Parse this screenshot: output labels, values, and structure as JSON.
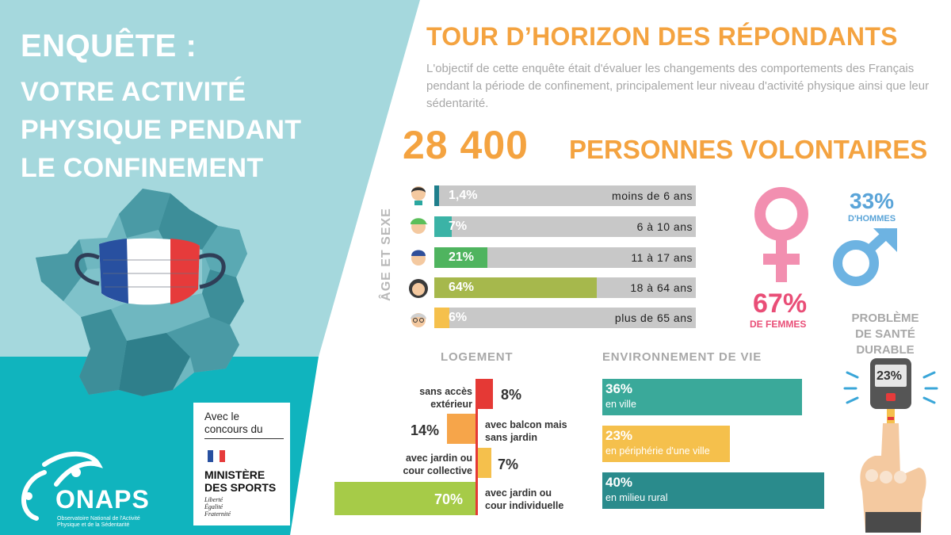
{
  "left": {
    "title": "ENQUÊTE :",
    "subtitle_lines": [
      "VOTRE ACTIVITÉ",
      "PHYSIQUE PENDANT",
      "LE CONFINEMENT"
    ],
    "partner": {
      "with_line1": "Avec le",
      "with_line2": "concours du",
      "ministry_line1": "MINISTÈRE",
      "ministry_line2": "DES SPORTS",
      "motto": [
        "Liberté",
        "Égalité",
        "Fraternité"
      ]
    },
    "org": {
      "name": "ONAPS",
      "desc_line1": "Observatoire National de l'Activité",
      "desc_line2": "Physique et de la Sédentarité"
    }
  },
  "header": {
    "title": "TOUR D’HORIZON DES RÉPONDANTS",
    "intro": "L'objectif de cette enquête était d'évaluer les changements des comportements des Français pendant la période de confinement, principalement leur niveau d'activité physique ainsi que leur sédentarité.",
    "big_number": "28 400",
    "big_label": "PERSONNES VOLONTAIRES"
  },
  "age": {
    "axis_label": "ÂGE ET SEXE",
    "rows": [
      {
        "pct": "1,4%",
        "value": 1.4,
        "label": "moins de 6 ans",
        "color": "#1f7f8c"
      },
      {
        "pct": "7%",
        "value": 7,
        "label": "6 à 10 ans",
        "color": "#3bb3a6"
      },
      {
        "pct": "21%",
        "value": 21,
        "label": "11 à 17 ans",
        "color": "#4fb45f"
      },
      {
        "pct": "64%",
        "value": 64,
        "label": "18 à 64 ans",
        "color": "#a6b84c"
      },
      {
        "pct": "6%",
        "value": 6,
        "label": "plus de 65 ans",
        "color": "#f5c04c"
      }
    ]
  },
  "sex": {
    "female_pct": "67%",
    "female_label": "DE FEMMES",
    "female_color": "#e94e77",
    "male_pct": "33%",
    "male_label": "D'HOMMES",
    "male_color": "#5aa4d8"
  },
  "health": {
    "title_lines": [
      "PROBLÈME",
      "DE SANTÉ",
      "DURABLE"
    ],
    "pct": "23%"
  },
  "housing": {
    "title": "LOGEMENT",
    "rows": [
      {
        "pct": "8%",
        "value": 8,
        "text": [
          "sans accès",
          "extérieur"
        ],
        "color": "#e53935"
      },
      {
        "pct": "14%",
        "value": 14,
        "text": [
          "avec balcon mais",
          "sans jardin"
        ],
        "color": "#f6a54a"
      },
      {
        "pct": "7%",
        "value": 7,
        "text": [
          "avec jardin ou",
          "cour collective"
        ],
        "color": "#f5c04c"
      },
      {
        "pct": "70%",
        "value": 70,
        "text": [
          "avec jardin ou",
          "cour individuelle"
        ],
        "color": "#a6cb48"
      }
    ]
  },
  "environment": {
    "title": "ENVIRONNEMENT DE VIE",
    "rows": [
      {
        "pct": "36%",
        "value": 36,
        "text": "en ville",
        "color": "#3aa99a"
      },
      {
        "pct": "23%",
        "value": 23,
        "text": "en périphérie d'une ville",
        "color": "#f5c04c"
      },
      {
        "pct": "40%",
        "value": 40,
        "text": "en milieu rural",
        "color": "#2a8b8c"
      }
    ]
  }
}
